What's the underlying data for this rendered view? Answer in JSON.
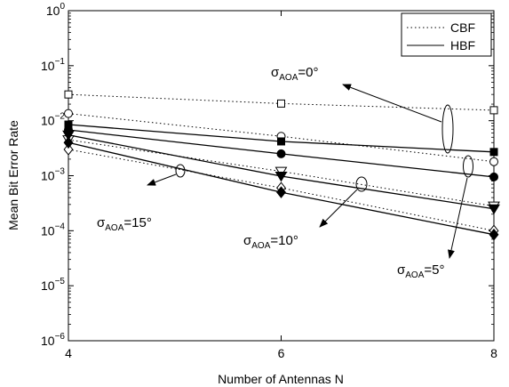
{
  "chart_data": {
    "type": "line",
    "xlabel": "Number of Antennas N",
    "ylabel": "Mean Bit Error Rate",
    "xlim": [
      4,
      8
    ],
    "ylim": [
      1e-06,
      1
    ],
    "yscale": "log",
    "grid": false,
    "xticks": [
      {
        "value": 4,
        "label": "4"
      },
      {
        "value": 6,
        "label": "6"
      },
      {
        "value": 8,
        "label": "8"
      }
    ],
    "yticks": [
      {
        "value": 1e-06,
        "base": "10",
        "exp": "−6"
      },
      {
        "value": 1e-05,
        "base": "10",
        "exp": "−5"
      },
      {
        "value": 0.0001,
        "base": "10",
        "exp": "−4"
      },
      {
        "value": 0.001,
        "base": "10",
        "exp": "−3"
      },
      {
        "value": 0.01,
        "base": "10",
        "exp": "−2"
      },
      {
        "value": 0.1,
        "base": "10",
        "exp": "−1"
      },
      {
        "value": 1,
        "base": "10",
        "exp": "0"
      }
    ],
    "legend": {
      "placement": "top-right",
      "entries": [
        {
          "label": "CBF",
          "style": "dotted"
        },
        {
          "label": "HBF",
          "style": "solid"
        }
      ]
    },
    "x": [
      4,
      6,
      8
    ],
    "series": [
      {
        "method": "CBF",
        "aoa": "0",
        "style": "dotted",
        "marker": "square-open",
        "values": [
          0.03,
          0.0205,
          0.0155
        ]
      },
      {
        "method": "CBF",
        "aoa": "5",
        "style": "dotted",
        "marker": "circle-open",
        "values": [
          0.0135,
          0.0052,
          0.0018
        ]
      },
      {
        "method": "CBF",
        "aoa": "10",
        "style": "dotted",
        "marker": "triangle-down-open",
        "values": [
          0.0045,
          0.0012,
          0.00028
        ]
      },
      {
        "method": "CBF",
        "aoa": "15",
        "style": "dotted",
        "marker": "diamond-open",
        "values": [
          0.003,
          0.0006,
          0.0001
        ]
      },
      {
        "method": "HBF",
        "aoa": "0",
        "style": "solid",
        "marker": "square-filled",
        "values": [
          0.0085,
          0.0042,
          0.0027
        ]
      },
      {
        "method": "HBF",
        "aoa": "5",
        "style": "solid",
        "marker": "circle-filled",
        "values": [
          0.0068,
          0.0025,
          0.00095
        ]
      },
      {
        "method": "HBF",
        "aoa": "10",
        "style": "solid",
        "marker": "triangle-down-filled",
        "values": [
          0.0055,
          0.00098,
          0.00025
        ]
      },
      {
        "method": "HBF",
        "aoa": "15",
        "style": "solid",
        "marker": "diamond-filled",
        "values": [
          0.004,
          0.0005,
          8.5e-05
        ]
      }
    ],
    "annotations": [
      {
        "id": "aoa0",
        "symbol": "σ",
        "sub": "AOA",
        "text": "=0°"
      },
      {
        "id": "aoa5",
        "symbol": "σ",
        "sub": "AOA",
        "text": "=5°"
      },
      {
        "id": "aoa10",
        "symbol": "σ",
        "sub": "AOA",
        "text": "=10°"
      },
      {
        "id": "aoa15",
        "symbol": "σ",
        "sub": "AOA",
        "text": "=15°"
      }
    ]
  }
}
